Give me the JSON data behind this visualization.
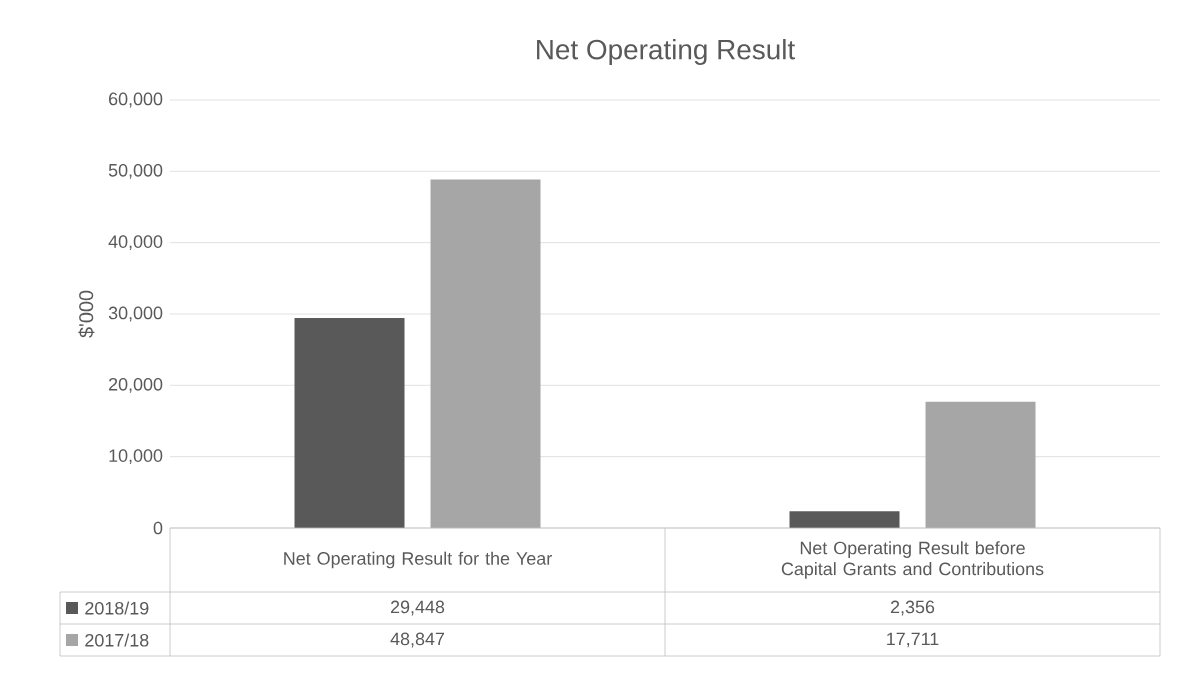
{
  "chart_data": {
    "type": "bar",
    "title": "Net Operating Result",
    "ylabel": "$'000",
    "categories": [
      "Net Operating Result for the Year",
      "Net Operating Result before Capital Grants and Contributions"
    ],
    "series": [
      {
        "name": "2018/19",
        "color": "#595959",
        "values": [
          29448,
          2356
        ],
        "value_labels": [
          "29,448",
          "2,356"
        ]
      },
      {
        "name": "2017/18",
        "color": "#a6a6a6",
        "values": [
          48847,
          17711
        ],
        "value_labels": [
          "48,847",
          "17,711"
        ]
      }
    ],
    "ylim": [
      0,
      60000
    ],
    "yticks": [
      0,
      {
        "value": 10000,
        "label": "10,000"
      },
      {
        "value": 20000,
        "label": "20,000"
      },
      {
        "value": 30000,
        "label": "30,000"
      },
      {
        "value": 40000,
        "label": "40,000"
      },
      {
        "value": 50000,
        "label": "50,000"
      },
      {
        "value": 60000,
        "label": "60,000"
      }
    ],
    "grid": "y",
    "legend": "bottom"
  }
}
